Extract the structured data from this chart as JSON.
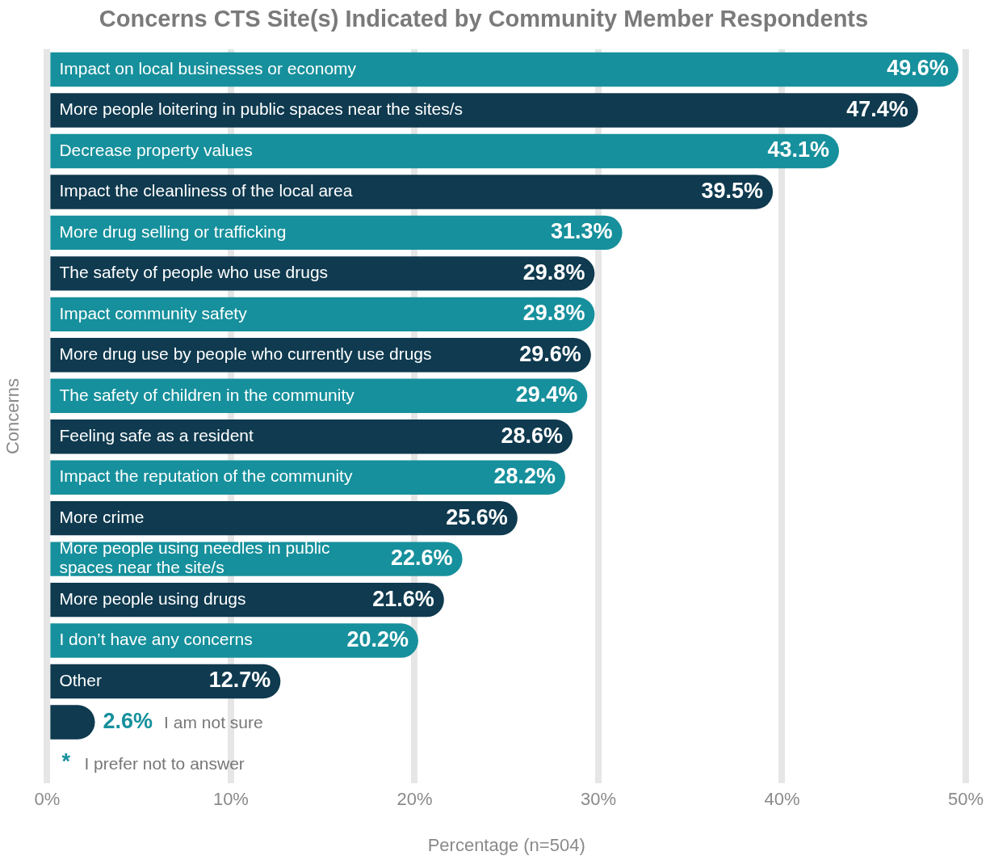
{
  "chart_data": {
    "type": "bar",
    "orientation": "horizontal",
    "title": "Concerns CTS Site(s) Indicated by Community Member Respondents",
    "xlabel": "Percentage (n=504)",
    "ylabel": "Concerns",
    "categories": [
      "Impact on local businesses or economy",
      "More people loitering in public spaces near the sites/s",
      "Decrease property values",
      "Impact the cleanliness of the local area",
      "More drug selling or trafficking",
      "The safety of people who use drugs",
      "Impact community safety",
      "More drug use by people who currently use drugs",
      "The safety of children in the community",
      "Feeling safe as a resident",
      "Impact the reputation of the community",
      "More crime",
      "More people using needles in public spaces near the site/s",
      "More people using drugs",
      "I don’t have any concerns",
      "Other",
      "I am not sure",
      "I prefer not to answer"
    ],
    "values": [
      49.6,
      47.4,
      43.1,
      39.5,
      31.3,
      29.8,
      29.8,
      29.6,
      29.4,
      28.6,
      28.2,
      25.6,
      22.6,
      21.6,
      20.2,
      12.7,
      2.6,
      null
    ],
    "value_labels": [
      "49.6%",
      "47.4%",
      "43.1%",
      "39.5%",
      "31.3%",
      "29.8%",
      "29.8%",
      "29.6%",
      "29.4%",
      "28.6%",
      "28.2%",
      "25.6%",
      "22.6%",
      "21.6%",
      "20.2%",
      "12.7%",
      "2.6%",
      "*"
    ],
    "colors": [
      "#16909c",
      "#0f3a4f",
      "#16909c",
      "#0f3a4f",
      "#16909c",
      "#0f3a4f",
      "#16909c",
      "#0f3a4f",
      "#16909c",
      "#0f3a4f",
      "#16909c",
      "#0f3a4f",
      "#16909c",
      "#0f3a4f",
      "#16909c",
      "#0f3a4f",
      "#0f3a4f",
      "#16909c"
    ],
    "xlim": [
      0,
      50
    ],
    "xticks": [
      {
        "value": 0,
        "label": "0%"
      },
      {
        "value": 10,
        "label": "10%"
      },
      {
        "value": 20,
        "label": "20%"
      },
      {
        "value": 30,
        "label": "30%"
      },
      {
        "value": 40,
        "label": "40%"
      },
      {
        "value": 50,
        "label": "50%"
      }
    ],
    "grid": "x",
    "legend": false
  }
}
